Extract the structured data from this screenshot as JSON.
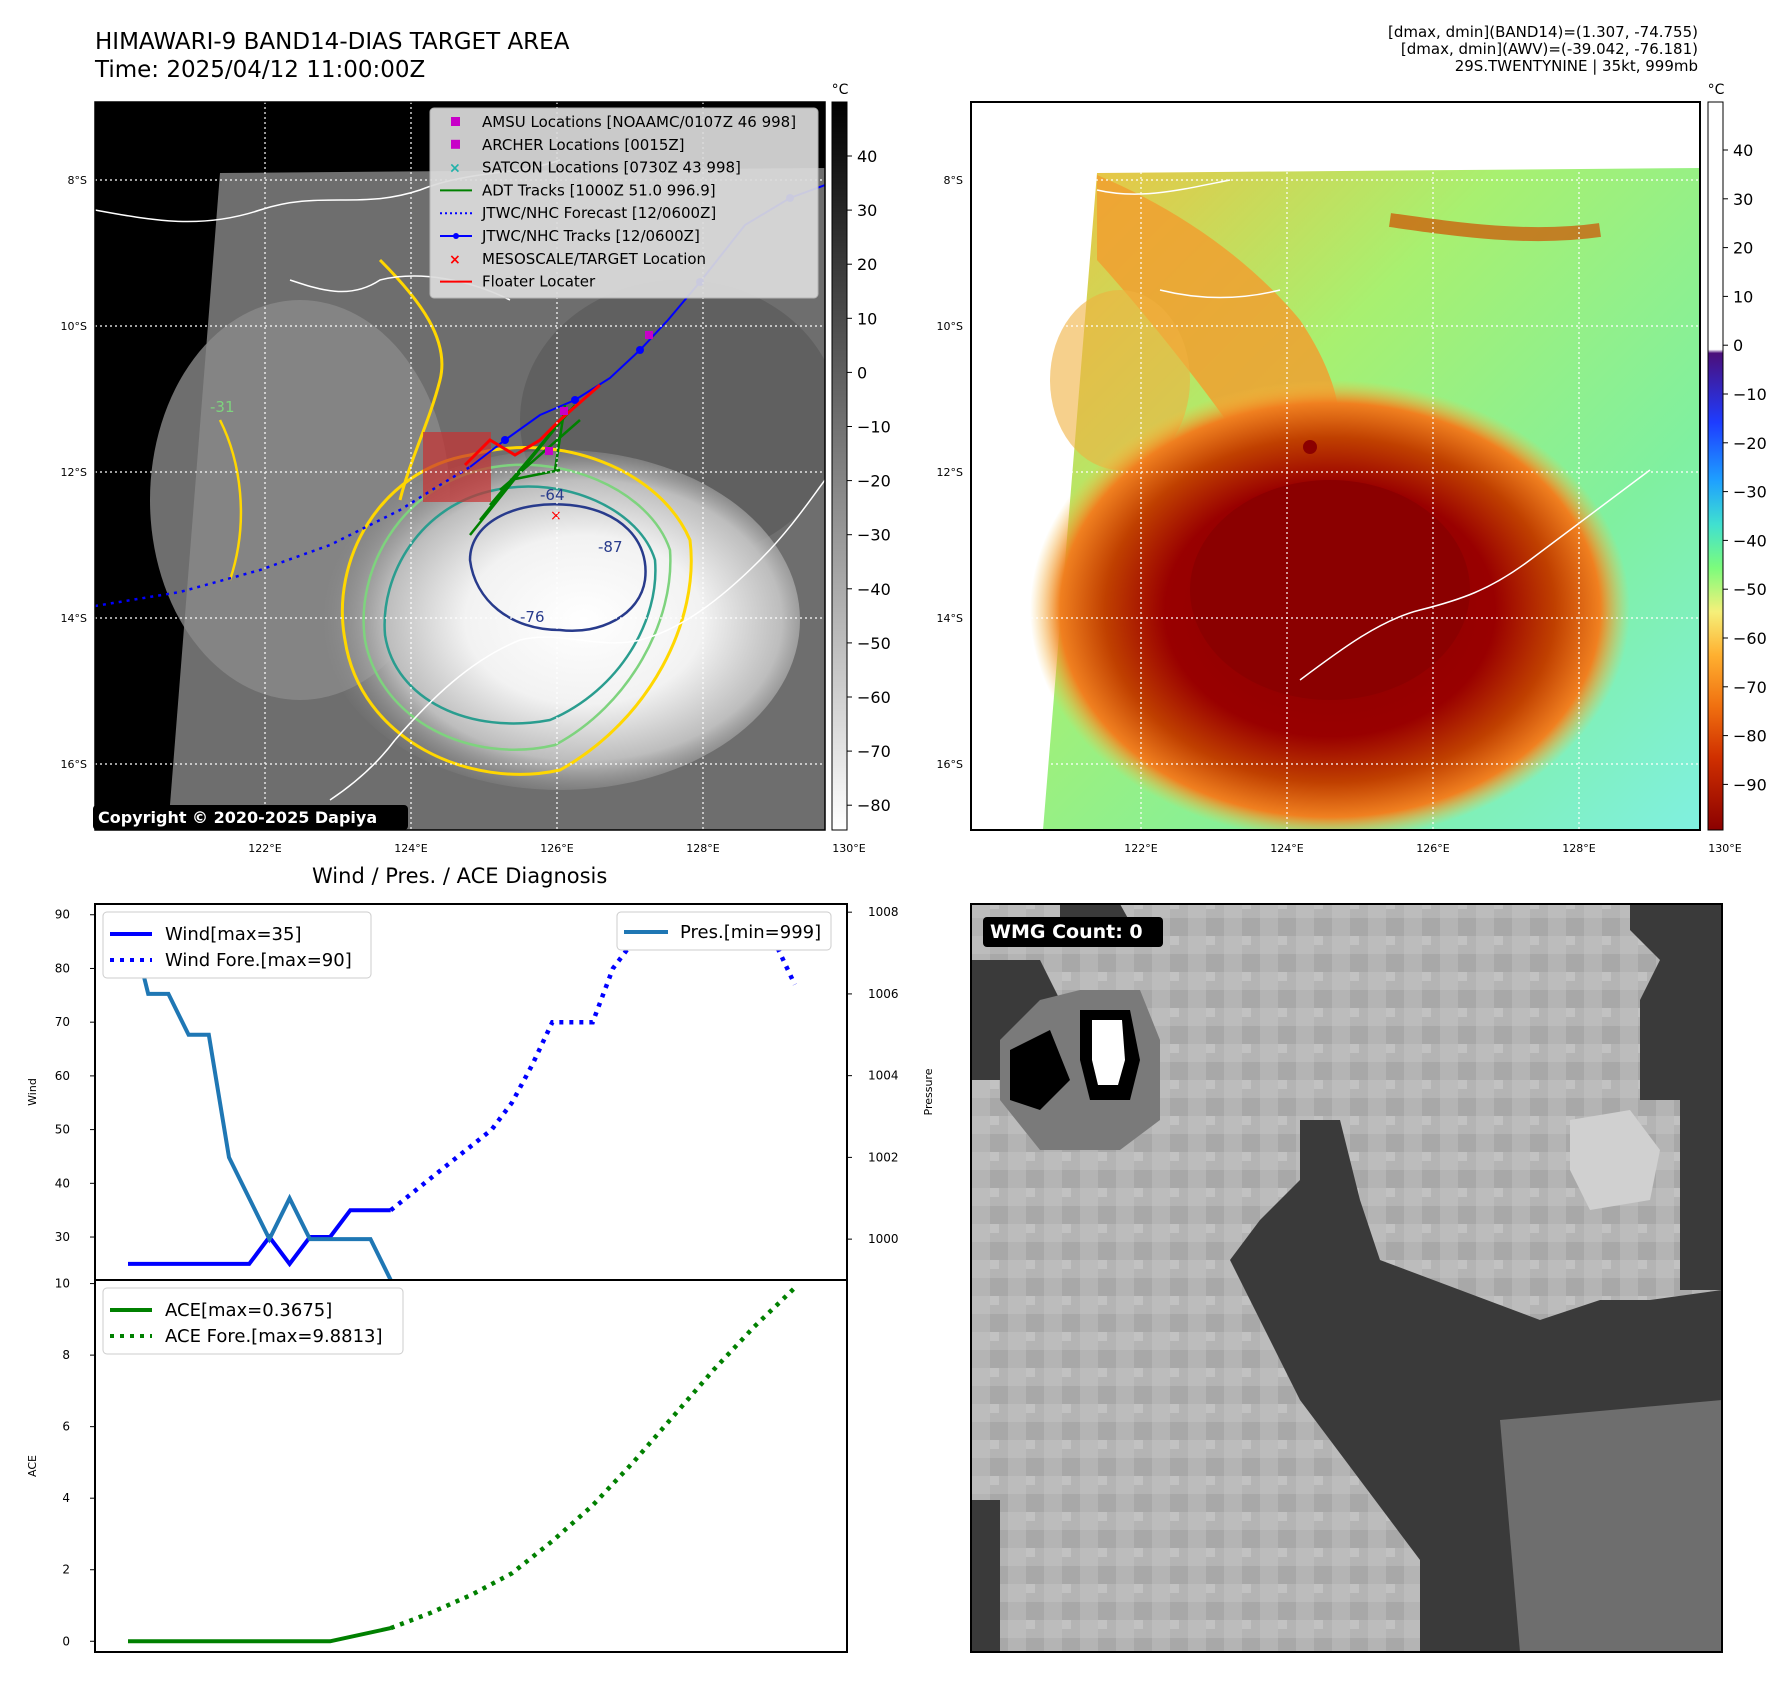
{
  "header": {
    "title_line1": "HIMAWARI-9 BAND14-DIAS TARGET AREA",
    "title_line2": "Time: 2025/04/12 11:00:00Z",
    "info_line1": "[dmax, dmin](BAND14)=(1.307, -74.755)",
    "info_line2": "[dmax, dmin](AWV)=(-39.042, -76.181)",
    "info_line3": "29S.TWENTYNINE | 35kt, 999mb"
  },
  "map_axes": {
    "lat_labels": [
      "8°S",
      "10°S",
      "12°S",
      "14°S",
      "16°S"
    ],
    "lon_labels": [
      "122°E",
      "124°E",
      "126°E",
      "128°E",
      "130°E"
    ],
    "lat_values": [
      -8,
      -10,
      -12,
      -14,
      -16
    ],
    "lon_values": [
      122,
      124,
      126,
      128,
      130
    ]
  },
  "ir_colorbar": {
    "unit": "°C",
    "ticks": [
      "40",
      "30",
      "20",
      "10",
      "0",
      "−10",
      "−20",
      "−30",
      "−40",
      "−50",
      "−60",
      "−70",
      "−80"
    ]
  },
  "wv_colorbar": {
    "unit": "°C",
    "ticks": [
      "40",
      "30",
      "20",
      "10",
      "0",
      "−10",
      "−20",
      "−30",
      "−40",
      "−50",
      "−60",
      "−70",
      "−80",
      "−90"
    ],
    "colors": [
      "#ffffff",
      "#4b0f7a",
      "#1e3cff",
      "#1ea0ff",
      "#40e0d0",
      "#7cfc7c",
      "#f5f07a",
      "#ffb030",
      "#f07010",
      "#d03000",
      "#8b0000"
    ]
  },
  "legend": {
    "items": [
      {
        "label": "AMSU Locations [NOAAMC/0107Z 46 998]",
        "color": "#c800c8",
        "marker": "square"
      },
      {
        "label": "ARCHER Locations [0015Z]",
        "color": "#c800c8",
        "marker": "square"
      },
      {
        "label": "SATCON Locations [0730Z 43 998]",
        "color": "#20b2aa",
        "marker": "x"
      },
      {
        "label": "ADT Tracks [1000Z 51.0 996.9]",
        "color": "#008000",
        "marker": "line"
      },
      {
        "label": "JTWC/NHC Forecast [12/0600Z]",
        "color": "#0000ff",
        "marker": "dotted"
      },
      {
        "label": "JTWC/NHC Tracks [12/0600Z]",
        "color": "#0000ff",
        "marker": "line-dot"
      },
      {
        "label": "MESOSCALE/TARGET Location",
        "color": "#ff0000",
        "marker": "x"
      },
      {
        "label": "Floater Locater",
        "color": "#ff0000",
        "marker": "line"
      }
    ]
  },
  "contour_labels": [
    "-31",
    "-64",
    "-76",
    "-87"
  ],
  "copyright": "Copyright © 2020-2025 Dapiya",
  "wmg_label": "WMG Count: 0",
  "chart_data": [
    {
      "type": "line",
      "title": "Wind / Pres. / ACE Diagnosis",
      "ylabel": "Wind",
      "ylabel2": "Pressure",
      "ylim": [
        22,
        92
      ],
      "ylim2": [
        999,
        1008.2
      ],
      "yticks": [
        30,
        40,
        50,
        60,
        70,
        80,
        90
      ],
      "yticks2": [
        1000,
        1002,
        1004,
        1006,
        1008
      ],
      "x": [
        0,
        1,
        2,
        3,
        4,
        5,
        6,
        7,
        8,
        9,
        10,
        11,
        12,
        13
      ],
      "series": [
        {
          "name": "Wind[max=35]",
          "axis": "left",
          "style": "solid",
          "color": "#0000ff",
          "x": [
            0,
            1,
            2,
            3,
            4,
            5,
            6,
            7,
            8,
            9,
            10,
            11,
            12,
            13
          ],
          "values": [
            25,
            25,
            25,
            25,
            25,
            25,
            25,
            30,
            25,
            30,
            30,
            35,
            35,
            35
          ]
        },
        {
          "name": "Wind Fore.[max=90]",
          "axis": "left",
          "style": "dotted",
          "color": "#0000ff",
          "x": [
            13,
            14,
            15,
            16,
            17,
            18,
            19,
            20,
            21,
            22,
            23,
            24,
            25,
            26,
            27,
            28,
            29,
            30,
            31,
            32,
            33
          ],
          "values": [
            35,
            38,
            41,
            44,
            47,
            50,
            55,
            62,
            70,
            70,
            70,
            80,
            85,
            85,
            85,
            90,
            85,
            85,
            85,
            85,
            77
          ]
        },
        {
          "name": "Pres.[min=999]",
          "axis": "right",
          "style": "solid",
          "color": "#1f77b4",
          "x": [
            0,
            1,
            2,
            3,
            4,
            5,
            6,
            7,
            8,
            9,
            10,
            11,
            12,
            13
          ],
          "values": [
            1008,
            1006,
            1006,
            1005,
            1005,
            1002,
            1001,
            1000,
            1001,
            1000,
            1000,
            1000,
            1000,
            999
          ]
        }
      ]
    },
    {
      "type": "line",
      "ylabel": "ACE",
      "ylim": [
        -0.3,
        10.1
      ],
      "yticks": [
        0,
        2,
        4,
        6,
        8,
        10
      ],
      "series": [
        {
          "name": "ACE[max=0.3675]",
          "style": "solid",
          "color": "#008000",
          "x": [
            0,
            10,
            13
          ],
          "values": [
            0,
            0,
            0.3675
          ]
        },
        {
          "name": "ACE Fore.[max=9.8813]",
          "style": "dotted",
          "color": "#008000",
          "x": [
            13,
            15,
            17,
            19,
            21,
            23,
            25,
            27,
            29,
            31,
            33
          ],
          "values": [
            0.3675,
            0.8,
            1.3,
            1.9,
            2.8,
            3.8,
            5.0,
            6.3,
            7.6,
            8.8,
            9.8813
          ]
        }
      ]
    }
  ]
}
